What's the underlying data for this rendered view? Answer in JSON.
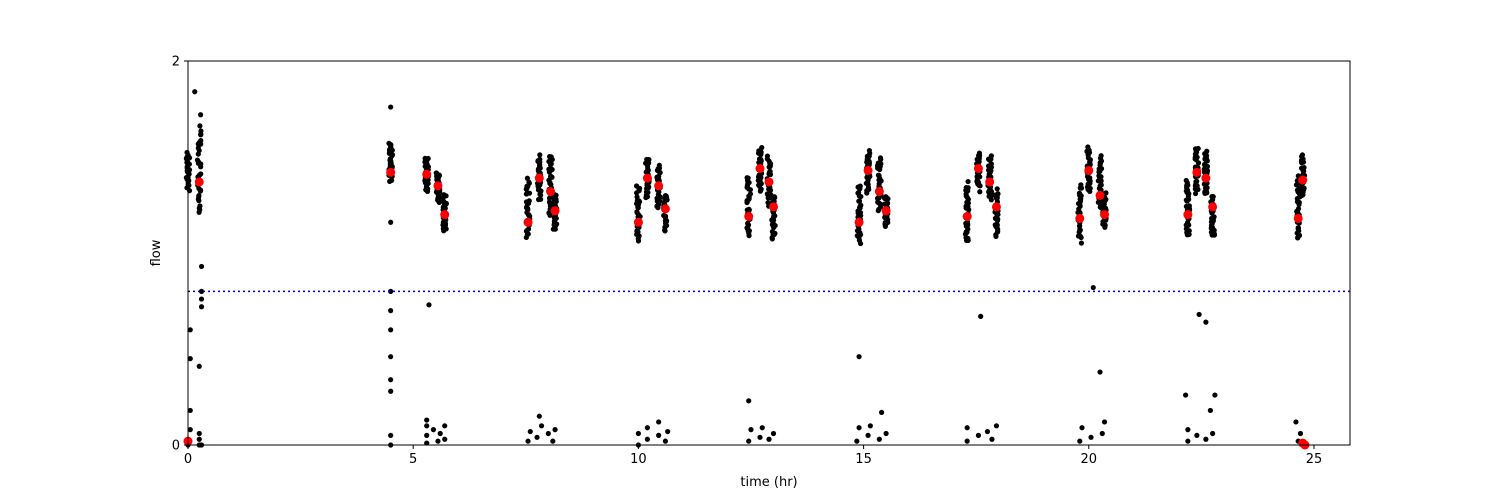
{
  "chart_data": {
    "type": "scatter",
    "xlabel": "time (hr)",
    "ylabel": "flow",
    "xlim": [
      0,
      25.8
    ],
    "ylim": [
      0,
      2
    ],
    "xticks": [
      0,
      5,
      10,
      15,
      20,
      25
    ],
    "yticks": [
      0,
      2
    ],
    "grid": false,
    "threshold": {
      "y": 0.8,
      "style": "dotted",
      "color": "#0000cc"
    },
    "colors": {
      "observations": "#000000",
      "means": "#ff0000"
    },
    "clusters": [
      {
        "x": 0.0,
        "y_low": 1.34,
        "y_high": 1.52,
        "mean": null
      },
      {
        "x": 0.25,
        "y_low": 1.2,
        "y_high": 1.66,
        "mean": 1.37
      },
      {
        "x": 4.5,
        "y_low": 1.38,
        "y_high": 1.57,
        "mean": 1.42
      },
      {
        "x": 5.3,
        "y_low": 1.33,
        "y_high": 1.5,
        "mean": 1.41
      },
      {
        "x": 5.55,
        "y_low": 1.26,
        "y_high": 1.42,
        "mean": 1.35
      },
      {
        "x": 5.7,
        "y_low": 1.12,
        "y_high": 1.29,
        "mean": 1.2
      },
      {
        "x": 7.55,
        "y_low": 1.09,
        "y_high": 1.38,
        "mean": 1.16
      },
      {
        "x": 7.8,
        "y_low": 1.28,
        "y_high": 1.5,
        "mean": 1.39
      },
      {
        "x": 8.05,
        "y_low": 1.2,
        "y_high": 1.5,
        "mean": 1.32
      },
      {
        "x": 8.15,
        "y_low": 1.12,
        "y_high": 1.3,
        "mean": 1.22
      },
      {
        "x": 10.0,
        "y_low": 1.06,
        "y_high": 1.35,
        "mean": 1.16
      },
      {
        "x": 10.2,
        "y_low": 1.3,
        "y_high": 1.5,
        "mean": 1.39
      },
      {
        "x": 10.45,
        "y_low": 1.24,
        "y_high": 1.45,
        "mean": 1.35
      },
      {
        "x": 10.6,
        "y_low": 1.12,
        "y_high": 1.3,
        "mean": 1.23
      },
      {
        "x": 12.45,
        "y_low": 1.09,
        "y_high": 1.4,
        "mean": 1.19
      },
      {
        "x": 12.7,
        "y_low": 1.32,
        "y_high": 1.55,
        "mean": 1.44
      },
      {
        "x": 12.9,
        "y_low": 1.25,
        "y_high": 1.5,
        "mean": 1.37
      },
      {
        "x": 13.0,
        "y_low": 1.08,
        "y_high": 1.3,
        "mean": 1.24
      },
      {
        "x": 14.9,
        "y_low": 1.06,
        "y_high": 1.35,
        "mean": 1.16
      },
      {
        "x": 15.1,
        "y_low": 1.32,
        "y_high": 1.52,
        "mean": 1.43
      },
      {
        "x": 15.35,
        "y_low": 1.23,
        "y_high": 1.5,
        "mean": 1.32
      },
      {
        "x": 15.5,
        "y_low": 1.14,
        "y_high": 1.3,
        "mean": 1.22
      },
      {
        "x": 17.3,
        "y_low": 1.06,
        "y_high": 1.36,
        "mean": 1.19
      },
      {
        "x": 17.55,
        "y_low": 1.33,
        "y_high": 1.52,
        "mean": 1.44
      },
      {
        "x": 17.8,
        "y_low": 1.28,
        "y_high": 1.5,
        "mean": 1.37
      },
      {
        "x": 17.95,
        "y_low": 1.09,
        "y_high": 1.32,
        "mean": 1.24
      },
      {
        "x": 19.8,
        "y_low": 1.06,
        "y_high": 1.35,
        "mean": 1.18
      },
      {
        "x": 20.0,
        "y_low": 1.32,
        "y_high": 1.55,
        "mean": 1.43
      },
      {
        "x": 20.25,
        "y_low": 1.23,
        "y_high": 1.5,
        "mean": 1.3
      },
      {
        "x": 20.35,
        "y_low": 1.14,
        "y_high": 1.3,
        "mean": 1.2
      },
      {
        "x": 22.2,
        "y_low": 1.09,
        "y_high": 1.38,
        "mean": 1.2
      },
      {
        "x": 22.4,
        "y_low": 1.32,
        "y_high": 1.55,
        "mean": 1.42
      },
      {
        "x": 22.6,
        "y_low": 1.3,
        "y_high": 1.53,
        "mean": 1.39
      },
      {
        "x": 22.75,
        "y_low": 1.08,
        "y_high": 1.3,
        "mean": 1.24
      },
      {
        "x": 24.65,
        "y_low": 1.07,
        "y_high": 1.4,
        "mean": 1.18
      },
      {
        "x": 24.75,
        "y_low": 1.3,
        "y_high": 1.5,
        "mean": 1.38
      }
    ],
    "low_points": [
      [
        0.0,
        0.0
      ],
      [
        0.0,
        0.02
      ],
      [
        0.05,
        0.08
      ],
      [
        0.05,
        0.18
      ],
      [
        0.05,
        0.45
      ],
      [
        0.05,
        0.6
      ],
      [
        0.25,
        0.0
      ],
      [
        0.25,
        0.03
      ],
      [
        0.25,
        0.06
      ],
      [
        0.25,
        0.41
      ],
      [
        0.3,
        0.0
      ],
      [
        0.3,
        0.72
      ],
      [
        0.3,
        0.76
      ],
      [
        0.3,
        0.8
      ],
      [
        0.3,
        0.93
      ],
      [
        0.15,
        1.84
      ],
      [
        0.28,
        1.72
      ],
      [
        4.5,
        0.0
      ],
      [
        4.5,
        0.05
      ],
      [
        4.5,
        0.28
      ],
      [
        4.5,
        0.34
      ],
      [
        4.5,
        0.46
      ],
      [
        4.5,
        0.6
      ],
      [
        4.5,
        0.7
      ],
      [
        4.5,
        0.8
      ],
      [
        4.5,
        1.16
      ],
      [
        4.5,
        1.76
      ],
      [
        5.35,
        0.73
      ],
      [
        5.3,
        0.01
      ],
      [
        5.3,
        0.05
      ],
      [
        5.3,
        0.1
      ],
      [
        5.3,
        0.13
      ],
      [
        5.45,
        0.08
      ],
      [
        5.55,
        0.02
      ],
      [
        5.6,
        0.06
      ],
      [
        5.7,
        0.1
      ],
      [
        5.7,
        0.03
      ],
      [
        7.55,
        0.02
      ],
      [
        7.6,
        0.07
      ],
      [
        7.75,
        0.04
      ],
      [
        7.85,
        0.1
      ],
      [
        7.8,
        0.15
      ],
      [
        8.0,
        0.06
      ],
      [
        8.1,
        0.02
      ],
      [
        8.15,
        0.08
      ],
      [
        10.0,
        0.0
      ],
      [
        10.0,
        0.06
      ],
      [
        10.2,
        0.03
      ],
      [
        10.2,
        0.09
      ],
      [
        10.45,
        0.05
      ],
      [
        10.45,
        0.12
      ],
      [
        10.6,
        0.02
      ],
      [
        10.65,
        0.07
      ],
      [
        12.45,
        0.02
      ],
      [
        12.5,
        0.08
      ],
      [
        12.45,
        0.23
      ],
      [
        12.7,
        0.04
      ],
      [
        12.75,
        0.09
      ],
      [
        12.9,
        0.03
      ],
      [
        13.0,
        0.06
      ],
      [
        14.85,
        0.02
      ],
      [
        14.9,
        0.09
      ],
      [
        14.9,
        0.46
      ],
      [
        15.1,
        0.05
      ],
      [
        15.15,
        0.1
      ],
      [
        15.35,
        0.03
      ],
      [
        15.4,
        0.17
      ],
      [
        15.5,
        0.06
      ],
      [
        17.3,
        0.02
      ],
      [
        17.3,
        0.09
      ],
      [
        17.55,
        0.05
      ],
      [
        17.6,
        0.67
      ],
      [
        17.85,
        0.03
      ],
      [
        17.95,
        0.1
      ],
      [
        17.75,
        0.07
      ],
      [
        19.8,
        0.02
      ],
      [
        19.85,
        0.09
      ],
      [
        20.05,
        0.04
      ],
      [
        20.1,
        0.82
      ],
      [
        20.25,
        0.38
      ],
      [
        20.3,
        0.06
      ],
      [
        20.35,
        0.12
      ],
      [
        22.2,
        0.02
      ],
      [
        22.2,
        0.08
      ],
      [
        22.15,
        0.26
      ],
      [
        22.4,
        0.05
      ],
      [
        22.45,
        0.68
      ],
      [
        22.6,
        0.03
      ],
      [
        22.6,
        0.64
      ],
      [
        22.75,
        0.06
      ],
      [
        22.8,
        0.26
      ],
      [
        22.7,
        0.18
      ],
      [
        24.65,
        0.02
      ],
      [
        24.7,
        0.06
      ],
      [
        24.6,
        0.12
      ],
      [
        24.8,
        0.0
      ]
    ],
    "low_means": [
      [
        0.0,
        0.02
      ],
      [
        24.75,
        0.01
      ],
      [
        24.8,
        0.0
      ]
    ]
  }
}
